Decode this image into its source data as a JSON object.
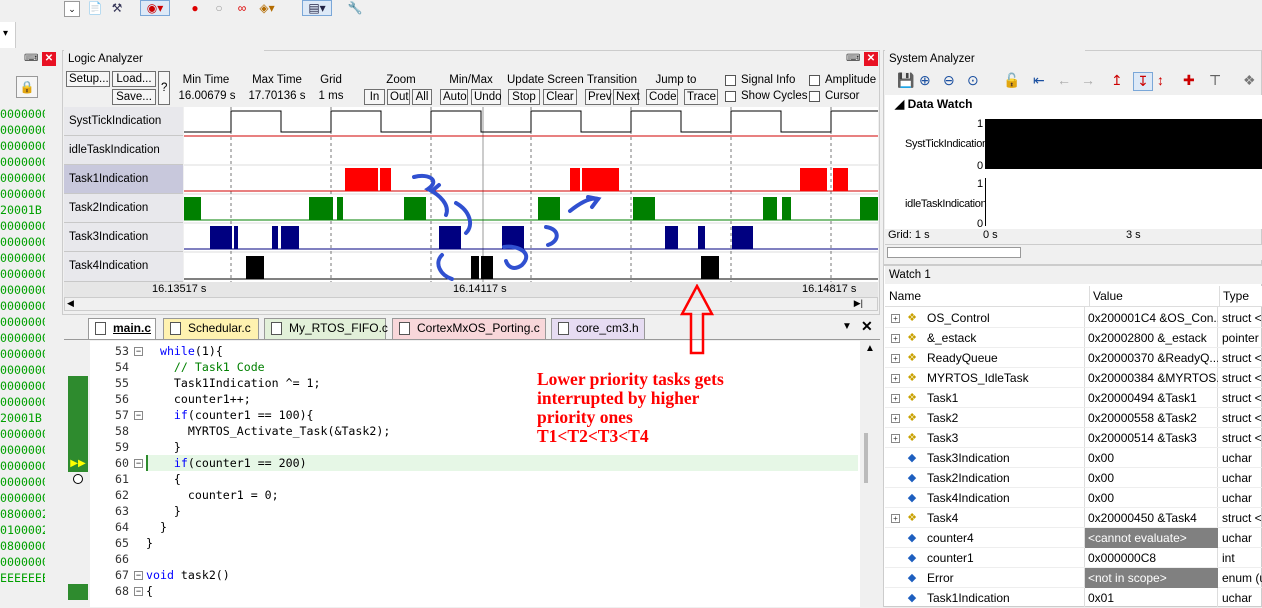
{
  "logic_analyzer": {
    "title": "Logic Analyzer",
    "setup": "Setup...",
    "load": "Load...",
    "save": "Save...",
    "help": "?",
    "min_time_label": "Min Time",
    "min_time_value": "16.00679 s",
    "max_time_label": "Max Time",
    "max_time_value": "17.70136 s",
    "grid_label": "Grid",
    "grid_value": "1 ms",
    "zoom_label": "Zoom",
    "zoom_in": "In",
    "zoom_out": "Out",
    "zoom_all": "All",
    "minmax_label": "Min/Max",
    "auto": "Auto",
    "undo": "Undo",
    "update_label": "Update Screen",
    "stop": "Stop",
    "clear": "Clear",
    "transition_label": "Transition",
    "prev": "Prev",
    "next": "Next",
    "jump_label": "Jump to",
    "code": "Code",
    "trace": "Trace",
    "signal_info": "Signal Info",
    "show_cycles": "Show Cycles",
    "amplitude": "Amplitude",
    "cursor": "Cursor",
    "signals": [
      "SystTickIndication",
      "idleTaskIndication",
      "Task1Indication",
      "Task2Indication",
      "Task3Indication",
      "Task4Indication"
    ],
    "time_left": "16.13517 s",
    "time_mid": "16.14117 s",
    "time_right": "16.14817 s"
  },
  "system_analyzer": {
    "title": "System Analyzer",
    "data_watch": "Data Watch",
    "sig1": "SystTickIndication",
    "sig2": "idleTaskIndication",
    "one": "1",
    "zero": "0",
    "one2": "1",
    "zero2": "0",
    "grid": "Grid: 1 s",
    "t0": "0 s",
    "t3": "3 s"
  },
  "editor": {
    "tabs": [
      "main.c",
      "Schedular.c",
      "My_RTOS_FIFO.c",
      "CortexMxOS_Porting.c",
      "core_cm3.h"
    ],
    "tab_colors": [
      "#ffffff",
      "#fff2b0",
      "#e2f0d9",
      "#f8d7da",
      "#e6dcf2"
    ],
    "lines": [
      {
        "n": "53",
        "t": "  while(1){"
      },
      {
        "n": "54",
        "t": "    // Task1 Code"
      },
      {
        "n": "55",
        "t": "    Task1Indication ^= 1;"
      },
      {
        "n": "56",
        "t": "    counter1++;"
      },
      {
        "n": "57",
        "t": "    if(counter1 == 100){"
      },
      {
        "n": "58",
        "t": "      MYRTOS_Activate_Task(&Task2);"
      },
      {
        "n": "59",
        "t": "    }"
      },
      {
        "n": "60",
        "t": "    if(counter1 == 200)"
      },
      {
        "n": "61",
        "t": "    {"
      },
      {
        "n": "62",
        "t": "      counter1 = 0;"
      },
      {
        "n": "63",
        "t": "    }"
      },
      {
        "n": "64",
        "t": "  }"
      },
      {
        "n": "65",
        "t": "}"
      },
      {
        "n": "66",
        "t": ""
      },
      {
        "n": "67",
        "t": "void task2()"
      },
      {
        "n": "68",
        "t": "{"
      }
    ]
  },
  "annotation": {
    "line1": "Lower priority tasks gets",
    "line2": "interrupted by higher",
    "line3": "priority ones",
    "line4": "T1<T2<T3<T4"
  },
  "watch": {
    "title": "Watch 1",
    "col_name": "Name",
    "col_value": "Value",
    "col_type": "Type",
    "rows": [
      {
        "name": "OS_Control",
        "value": "0x200001C4 &OS_Con...",
        "type": "struct <",
        "exp": true,
        "icon": "struct"
      },
      {
        "name": "&_estack",
        "value": "0x20002800 &_estack",
        "type": "pointer",
        "exp": true,
        "icon": "struct"
      },
      {
        "name": "ReadyQueue",
        "value": "0x20000370 &ReadyQ...",
        "type": "struct <",
        "exp": true,
        "icon": "struct"
      },
      {
        "name": "MYRTOS_IdleTask",
        "value": "0x20000384 &MYRTOS...",
        "type": "struct <",
        "exp": true,
        "icon": "struct"
      },
      {
        "name": "Task1",
        "value": "0x20000494 &Task1",
        "type": "struct <",
        "exp": true,
        "icon": "struct"
      },
      {
        "name": "Task2",
        "value": "0x20000558 &Task2",
        "type": "struct <",
        "exp": true,
        "icon": "struct"
      },
      {
        "name": "Task3",
        "value": "0x20000514 &Task3",
        "type": "struct <",
        "exp": true,
        "icon": "struct"
      },
      {
        "name": "Task3Indication",
        "value": "0x00",
        "type": "uchar",
        "exp": false,
        "icon": "var"
      },
      {
        "name": "Task2Indication",
        "value": "0x00",
        "type": "uchar",
        "exp": false,
        "icon": "var"
      },
      {
        "name": "Task4Indication",
        "value": "0x00",
        "type": "uchar",
        "exp": false,
        "icon": "var"
      },
      {
        "name": "Task4",
        "value": "0x20000450 &Task4",
        "type": "struct <",
        "exp": true,
        "icon": "struct"
      },
      {
        "name": "counter4",
        "value": "<cannot evaluate>",
        "type": "uchar",
        "exp": false,
        "icon": "var",
        "grey": true
      },
      {
        "name": "counter1",
        "value": "0x000000C8",
        "type": "int",
        "exp": false,
        "icon": "var"
      },
      {
        "name": "Error",
        "value": "<not in scope>",
        "type": "enum (u",
        "exp": false,
        "icon": "var",
        "grey": true
      },
      {
        "name": "Task1Indication",
        "value": "0x01",
        "type": "uchar",
        "exp": false,
        "icon": "var"
      }
    ]
  },
  "memory_col": [
    "0000000",
    "0000000",
    "0000000",
    "0000000",
    "0000000",
    "0000000",
    "20001B",
    "0000000",
    "0000000",
    "0000000",
    "0000000",
    "0000000",
    "0000000",
    "0000000",
    "0000000",
    "0000000",
    "0000000",
    "0000000",
    "0000000",
    "20001B",
    "0000000",
    "0000000",
    "0000000",
    "0000000",
    "0000000",
    "0800002",
    "0100002",
    "0800000",
    "0000000",
    "EEEEEEE"
  ]
}
